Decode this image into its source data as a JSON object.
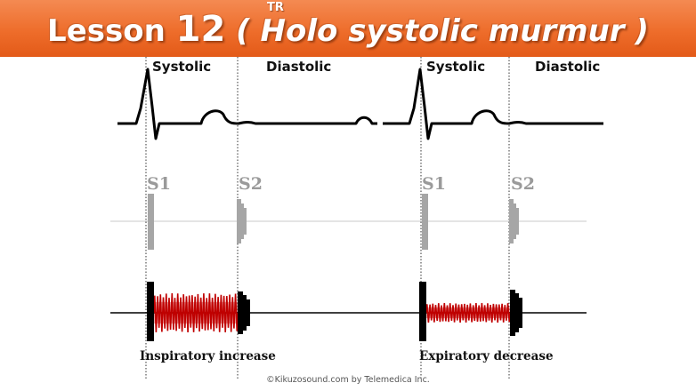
{
  "header": {
    "title_prefix": "Lesson",
    "lesson_number": "12",
    "title_rest": "( Holo systolic murmur )",
    "superscript": "TR"
  },
  "panels": [
    {
      "systolic_label": "Systolic",
      "diastolic_label": "Diastolic",
      "s1_label": "S1",
      "s2_label": "S2",
      "caption": "Inspiratory increase"
    },
    {
      "systolic_label": "Systolic",
      "diastolic_label": "Diastolic",
      "s1_label": "S1",
      "s2_label": "S2",
      "caption": "Expiratory decrease"
    }
  ],
  "footer": "©Kikuzosound.com by Telemedica Inc.",
  "colors": {
    "banner": "#ee6d2b",
    "murmur": "#c00000",
    "heart_sound_gray": "#a6a6a6",
    "heart_sound_black": "#000000"
  },
  "murmur_intensity": {
    "inspiration": "increase",
    "expiration": "decrease"
  }
}
